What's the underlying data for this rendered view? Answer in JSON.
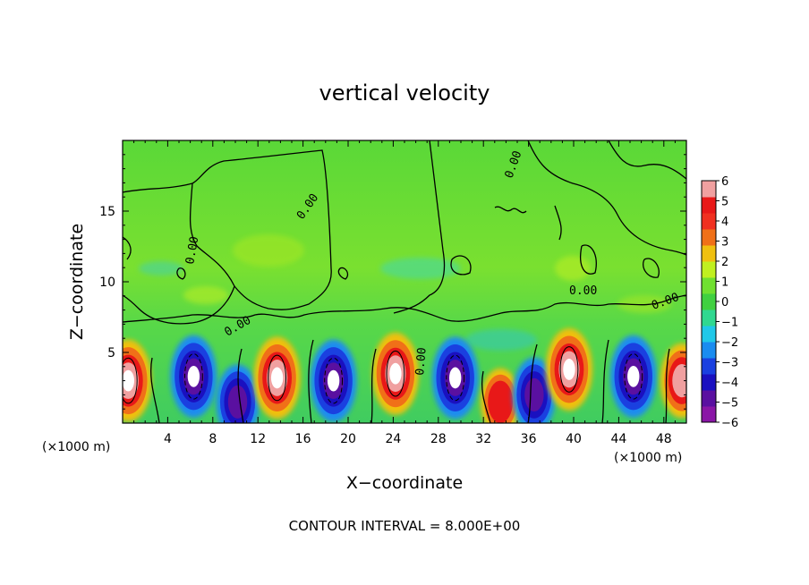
{
  "chart_data": {
    "type": "heatmap",
    "title": "vertical velocity",
    "xlabel": "X−coordinate",
    "ylabel": "Z−coordinate",
    "x_unit": "(×1000 m)",
    "y_unit": "(×1000 m)",
    "xlim": [
      0,
      50
    ],
    "ylim": [
      0,
      20
    ],
    "xticks": [
      4,
      8,
      12,
      16,
      20,
      24,
      28,
      32,
      36,
      40,
      44,
      48
    ],
    "yticks": [
      5,
      10,
      15
    ],
    "colorbar": {
      "range": [
        -6,
        6
      ],
      "ticks": [
        6,
        5,
        4,
        3,
        2,
        1,
        0,
        -1,
        -2,
        -3,
        -4,
        -5,
        -6
      ],
      "tick_labels": [
        "6",
        "5",
        "4",
        "3",
        "2",
        "1",
        "0",
        "−1",
        "−2",
        "−3",
        "−4",
        "−5",
        "−6"
      ],
      "colors": [
        "#8a16a6",
        "#5a10a0",
        "#1a10c0",
        "#1a40e0",
        "#1a8cf0",
        "#20c8e8",
        "#30d890",
        "#40d040",
        "#70e030",
        "#c0f020",
        "#f0c010",
        "#f07018",
        "#f03020",
        "#e81818",
        "#f0a0a0"
      ]
    },
    "contour_label": "0.00",
    "contour_interval_text": "CONTOUR INTERVAL = 8.000E+00",
    "cells": [
      {
        "x": 0.5,
        "z": 3.0,
        "w": 6.0
      },
      {
        "x": 6.3,
        "z": 3.3,
        "w": -6.0
      },
      {
        "x": 10.2,
        "z": 1.5,
        "w": -5.0
      },
      {
        "x": 13.7,
        "z": 3.2,
        "w": 6.0
      },
      {
        "x": 18.7,
        "z": 3.0,
        "w": -6.0
      },
      {
        "x": 24.2,
        "z": 3.5,
        "w": 6.0
      },
      {
        "x": 29.5,
        "z": 3.2,
        "w": -6.0
      },
      {
        "x": 33.5,
        "z": 1.5,
        "w": 4.0
      },
      {
        "x": 36.5,
        "z": 2.0,
        "w": -5.0
      },
      {
        "x": 39.6,
        "z": 3.8,
        "w": 6.0
      },
      {
        "x": 45.3,
        "z": 3.3,
        "w": -6.0
      },
      {
        "x": 49.6,
        "z": 3.0,
        "w": 5.0
      }
    ]
  },
  "labels": {
    "x_unit_left": "(×1000 m)",
    "x_unit_right": "(×1000 m)"
  }
}
